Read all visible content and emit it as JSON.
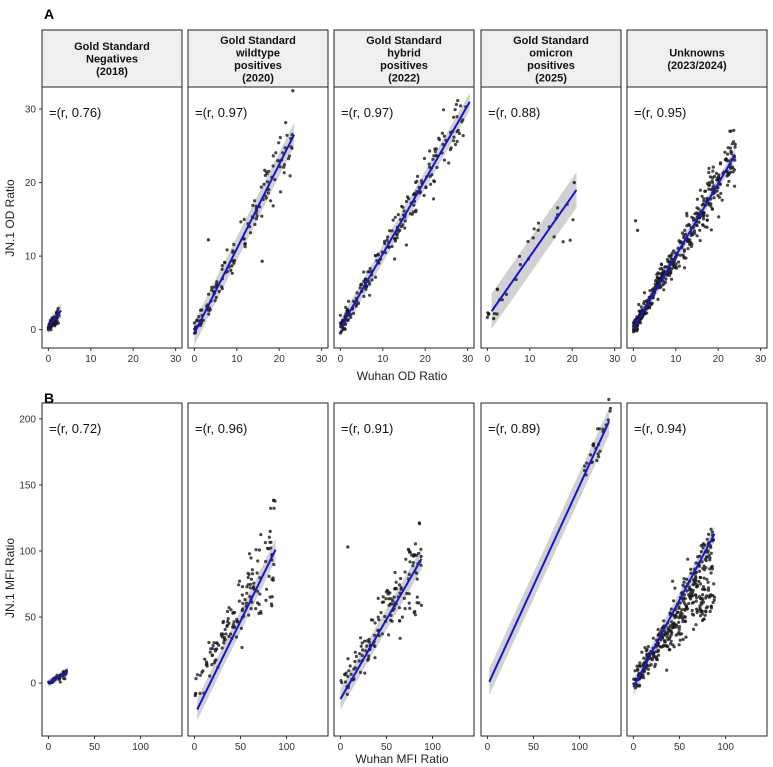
{
  "panel_labels": {
    "a": "A",
    "b": "B"
  },
  "strip_labels": [
    [
      "Gold Standard",
      "Negatives",
      "(2018)"
    ],
    [
      "Gold Standard",
      "wildtype",
      "positives",
      "(2020)"
    ],
    [
      "Gold Standard",
      "hybrid",
      "positives",
      "(2022)"
    ],
    [
      "Gold Standard",
      "omicron",
      "positives",
      "(2025)"
    ],
    [
      "Unknowns",
      "(2023/2024)"
    ]
  ],
  "colors": {
    "points": "#1a1a1a",
    "fit_line": "#1515d6",
    "ribbon": "#bdbdbd",
    "strip_bg": "#efefef"
  },
  "chart_data": [
    {
      "type": "scatter",
      "panel": "A",
      "xlabel": "Wuhan OD Ratio",
      "ylabel": "JN.1 OD Ratio",
      "xlim": [
        -1.5,
        31.5
      ],
      "ylim": [
        -2.5,
        33
      ],
      "xticks": [
        0,
        10,
        20,
        30
      ],
      "yticks": [
        0,
        10,
        20,
        30
      ],
      "grid": false,
      "facets": [
        {
          "annotation": "=(r, 0.76)",
          "fit": {
            "x": [
              0,
              3
            ],
            "y": [
              0.4,
              2.6
            ]
          },
          "ribbon": 0.5,
          "n": 60,
          "cluster": {
            "xmax": 3,
            "slope": 0.75,
            "intercept": 0.3,
            "spread": 0.5,
            "max_x": 2.5
          }
        },
        {
          "annotation": "=(r, 0.97)",
          "fit": {
            "x": [
              0,
              23.5
            ],
            "y": [
              -0.5,
              26.5
            ]
          },
          "ribbon": 0.8,
          "n": 130,
          "cluster": {
            "xmax": 23.5,
            "slope": 1.15,
            "intercept": -0.4,
            "spread": 1.5,
            "max_x": 23.3,
            "extra": [
              [
                23.2,
                32.5
              ],
              [
                3.3,
                12.2
              ],
              [
                16,
                9.3
              ]
            ]
          }
        },
        {
          "annotation": "=(r, 0.97)",
          "fit": {
            "x": [
              0,
              30.5
            ],
            "y": [
              0.2,
              31
            ]
          },
          "ribbon": 0.6,
          "n": 200,
          "cluster": {
            "xmax": 30,
            "slope": 1.0,
            "intercept": 0.2,
            "spread": 1.6,
            "max_x": 30
          }
        },
        {
          "annotation": "=(r, 0.88)",
          "fit": {
            "x": [
              1,
              21
            ],
            "y": [
              2.5,
              19
            ]
          },
          "ribbon": 1.2,
          "n": 30,
          "cluster": {
            "xmax": 21,
            "slope": 0.82,
            "intercept": 1.6,
            "spread": 1.6,
            "max_x": 21,
            "extra": [
              [
                1.5,
                1.5
              ],
              [
                20.5,
                20
              ]
            ]
          }
        },
        {
          "annotation": "=(r, 0.95)",
          "fit": {
            "x": [
              0,
              24
            ],
            "y": [
              0.2,
              23.8
            ]
          },
          "ribbon": 0.4,
          "n": 420,
          "cluster": {
            "xmax": 24,
            "slope": 0.98,
            "intercept": 0.2,
            "spread": 1.4,
            "max_x": 24,
            "extra": [
              [
                0.5,
                14.8
              ],
              [
                1,
                13.5
              ],
              [
                23,
                27
              ],
              [
                24,
                25.2
              ]
            ]
          }
        }
      ]
    },
    {
      "type": "scatter",
      "panel": "B",
      "xlabel": "Wuhan MFI Ratio",
      "ylabel": "JN.1 MFI Ratio",
      "xlim": [
        -7,
        145
      ],
      "ylim": [
        -40,
        212
      ],
      "xticks": [
        0,
        50,
        100
      ],
      "yticks": [
        0,
        50,
        100,
        150,
        200
      ],
      "grid": false,
      "facets": [
        {
          "annotation": "=(r, 0.72)",
          "fit": {
            "x": [
              0,
              21
            ],
            "y": [
              0,
              9
            ]
          },
          "ribbon": 1.5,
          "n": 40,
          "cluster": {
            "xmax": 20,
            "slope": 0.4,
            "intercept": 0.2,
            "spread": 1.5,
            "max_x": 20
          }
        },
        {
          "annotation": "=(r, 0.96)",
          "fit": {
            "x": [
              3,
              88
            ],
            "y": [
              -20,
              101
            ]
          },
          "ribbon": 4,
          "n": 150,
          "cluster": {
            "xmax": 88,
            "slope": 1.25,
            "intercept": -5,
            "spread": 12,
            "max_x": 88,
            "knee": true
          }
        },
        {
          "annotation": "=(r, 0.91)",
          "fit": {
            "x": [
              0,
              88
            ],
            "y": [
              -12,
              94
            ]
          },
          "ribbon": 4,
          "n": 150,
          "cluster": {
            "xmax": 88,
            "slope": 1.1,
            "intercept": -4,
            "spread": 12,
            "max_x": 88,
            "knee": true,
            "extra": [
              [
                8,
                103
              ]
            ]
          }
        },
        {
          "annotation": "=(r, 0.89)",
          "fit": {
            "x": [
              2,
              132
            ],
            "y": [
              1,
              198
            ]
          },
          "ribbon": 5,
          "n": 25,
          "cluster": {
            "xmax": 135,
            "slope": 1.5,
            "intercept": 0,
            "spread": 6,
            "max_x": 135,
            "min_x": 105
          }
        },
        {
          "annotation": "=(r, 0.94)",
          "fit": {
            "x": [
              0,
              88
            ],
            "y": [
              -3,
              113
            ]
          },
          "ribbon": 3,
          "n": 380,
          "cluster": {
            "xmax": 88,
            "slope": 1.05,
            "intercept": 0,
            "spread": 11,
            "max_x": 88,
            "knee": true
          }
        }
      ]
    }
  ]
}
